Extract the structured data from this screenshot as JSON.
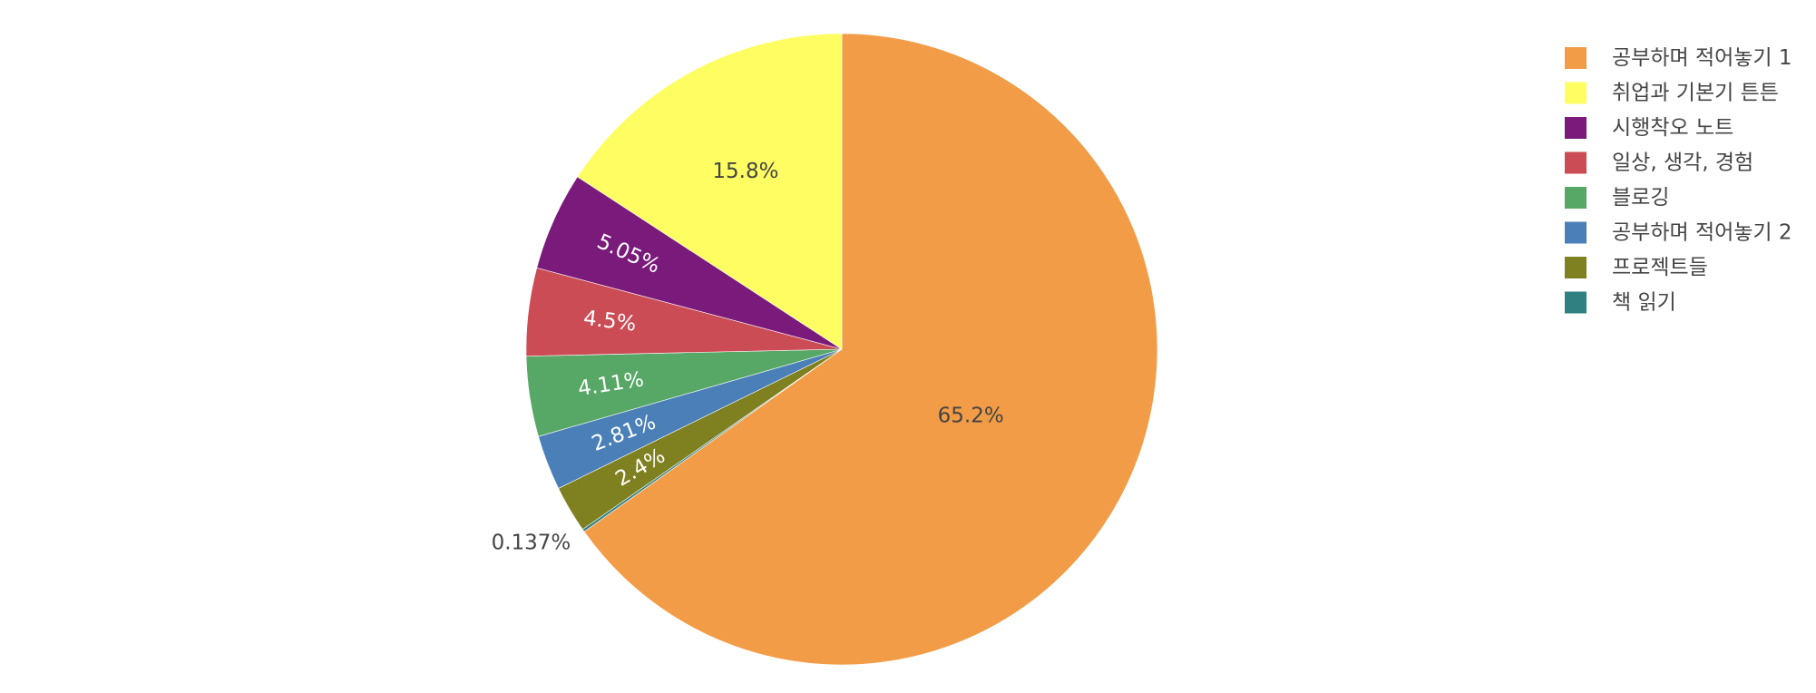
{
  "chart_data": {
    "type": "pie",
    "title": "",
    "direction": "clockwise",
    "start_angle_deg": 90,
    "legend_position": "top-right",
    "slices": [
      {
        "label": "공부하며 적어놓기 1",
        "value": 65.2,
        "text": "65.2%",
        "color": "#f39c47",
        "text_color": "#444444"
      },
      {
        "label": "책 읽기",
        "value": 0.137,
        "text": "0.137%",
        "color": "#2f8080",
        "text_color": "#444444"
      },
      {
        "label": "프로젝트들",
        "value": 2.4,
        "text": "2.4%",
        "color": "#7f8020",
        "text_color": "#ffffff"
      },
      {
        "label": "공부하며 적어놓기 2",
        "value": 2.81,
        "text": "2.81%",
        "color": "#4a7fb8",
        "text_color": "#ffffff"
      },
      {
        "label": "블로깅",
        "value": 4.11,
        "text": "4.11%",
        "color": "#57a867",
        "text_color": "#ffffff"
      },
      {
        "label": "일상, 생각, 경험",
        "value": 4.5,
        "text": "4.5%",
        "color": "#cc4c55",
        "text_color": "#ffffff"
      },
      {
        "label": "시행착오 노트",
        "value": 5.05,
        "text": "5.05%",
        "color": "#7a1a7a",
        "text_color": "#ffffff"
      },
      {
        "label": "취업과 기본기 튼튼",
        "value": 15.8,
        "text": "15.8%",
        "color": "#fefe62",
        "text_color": "#444444"
      }
    ],
    "legend_order": [
      "공부하며 적어놓기 1",
      "취업과 기본기 튼튼",
      "시행착오 노트",
      "일상, 생각, 경험",
      "블로깅",
      "공부하며 적어놓기 2",
      "프로젝트들",
      "책 읽기"
    ]
  }
}
